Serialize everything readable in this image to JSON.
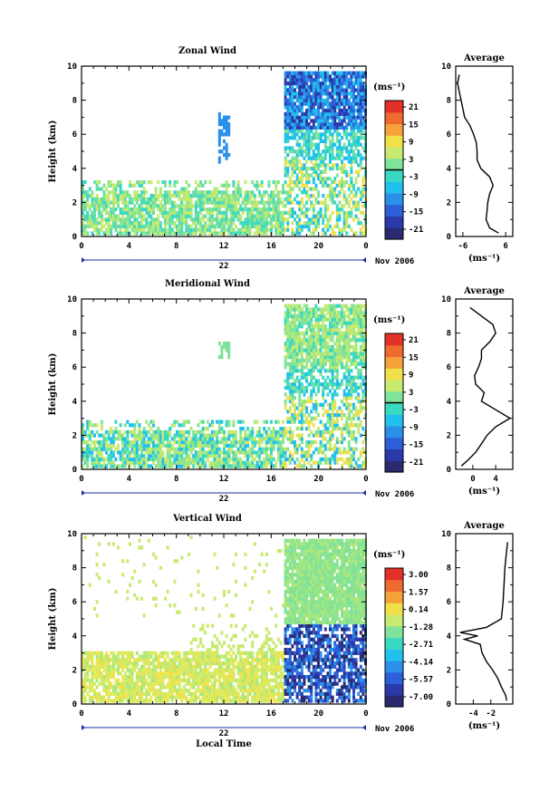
{
  "chart_data": [
    {
      "type": "heatmap",
      "title": "Zonal Wind",
      "ylabel": "Height (km)",
      "ylim": [
        0,
        10
      ],
      "x_ticks": [
        "0",
        "4",
        "8",
        "12",
        "16",
        "20",
        "0"
      ],
      "date_day": "22",
      "date_month": "Nov 2006",
      "colorbar_unit": "(ms⁻¹)",
      "colorbar_ticks": [
        "21",
        "15",
        "9",
        "3",
        "-3",
        "-9",
        "-15",
        "-21"
      ],
      "average": {
        "title": "Average",
        "xlabel": "(ms⁻¹)",
        "x_ticks": [
          "-6",
          "6"
        ],
        "xlim": [
          -8,
          8
        ],
        "heights": [
          0.2,
          0.5,
          1.0,
          1.5,
          2.0,
          2.5,
          3.0,
          3.5,
          4.0,
          4.5,
          5.0,
          5.5,
          6.0,
          6.5,
          7.0,
          7.5,
          8.0,
          8.5,
          9.0,
          9.5
        ],
        "values": [
          4.0,
          1.5,
          0.5,
          0.8,
          1.0,
          1.5,
          2.5,
          1.5,
          -1.0,
          -2.0,
          -2.0,
          -2.2,
          -3.0,
          -4.0,
          -5.5,
          -6.0,
          -6.5,
          -7.0,
          -7.5,
          -7.0
        ]
      }
    },
    {
      "type": "heatmap",
      "title": "Meridional Wind",
      "ylabel": "Height (km)",
      "ylim": [
        0,
        10
      ],
      "x_ticks": [
        "0",
        "4",
        "8",
        "12",
        "16",
        "20",
        "0"
      ],
      "date_day": "22",
      "date_month": "Nov 2006",
      "colorbar_unit": "(ms⁻¹)",
      "colorbar_ticks": [
        "21",
        "15",
        "9",
        "3",
        "-3",
        "-9",
        "-15",
        "-21"
      ],
      "average": {
        "title": "Average",
        "xlabel": "(ms⁻¹)",
        "x_ticks": [
          "0",
          "4"
        ],
        "xlim": [
          -3,
          7
        ],
        "heights": [
          0.2,
          0.5,
          1.0,
          1.5,
          2.0,
          2.5,
          3.0,
          3.5,
          4.0,
          4.5,
          5.0,
          5.5,
          6.0,
          6.5,
          7.0,
          7.5,
          8.0,
          8.5,
          9.0,
          9.5
        ],
        "values": [
          -2.0,
          -1.0,
          0.5,
          1.5,
          2.5,
          4.0,
          6.5,
          4.0,
          1.5,
          2.0,
          0.5,
          0.3,
          1.0,
          1.5,
          1.5,
          3.0,
          4.0,
          3.5,
          1.5,
          -0.5
        ]
      }
    },
    {
      "type": "heatmap",
      "title": "Vertical Wind",
      "ylabel": "Height (km)",
      "xlabel": "Local Time",
      "ylim": [
        0,
        10
      ],
      "x_ticks": [
        "0",
        "4",
        "8",
        "12",
        "16",
        "20",
        "0"
      ],
      "date_day": "22",
      "date_month": "Nov 2006",
      "colorbar_unit": "(ms⁻¹)",
      "colorbar_ticks": [
        "3.00",
        "1.57",
        "0.14",
        "-1.28",
        "-2.71",
        "-4.14",
        "-5.57",
        "-7.00"
      ],
      "average": {
        "title": "Average",
        "xlabel": "(ms⁻¹)",
        "x_ticks": [
          "-4",
          "-2"
        ],
        "xlim": [
          -6,
          0.5
        ],
        "heights": [
          0.2,
          0.5,
          1.0,
          1.5,
          2.0,
          2.5,
          3.0,
          3.5,
          3.8,
          4.0,
          4.2,
          4.5,
          5.0,
          6.0,
          7.0,
          8.0,
          9.0,
          9.5
        ],
        "values": [
          -0.2,
          -0.3,
          -0.8,
          -1.2,
          -1.8,
          -2.5,
          -3.0,
          -3.2,
          -5.0,
          -3.5,
          -5.5,
          -2.5,
          -0.8,
          -0.6,
          -0.5,
          -0.4,
          -0.2,
          -0.1
        ]
      }
    }
  ]
}
